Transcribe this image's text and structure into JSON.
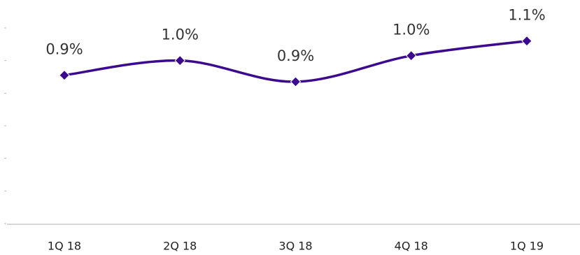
{
  "chart_data": {
    "type": "line",
    "categories": [
      "1Q 18",
      "2Q 18",
      "3Q 18",
      "4Q 18",
      "1Q 19"
    ],
    "values": [
      0.91,
      1.0,
      0.87,
      1.03,
      1.12
    ],
    "value_labels": [
      "0.9%",
      "1.0%",
      "0.9%",
      "1.0%",
      "1.1%"
    ],
    "color": "#3b0a8e",
    "ylim": [
      0,
      1.2
    ],
    "yticks": [
      0,
      0.2,
      0.4,
      0.6,
      0.8,
      1.0,
      1.2
    ]
  }
}
